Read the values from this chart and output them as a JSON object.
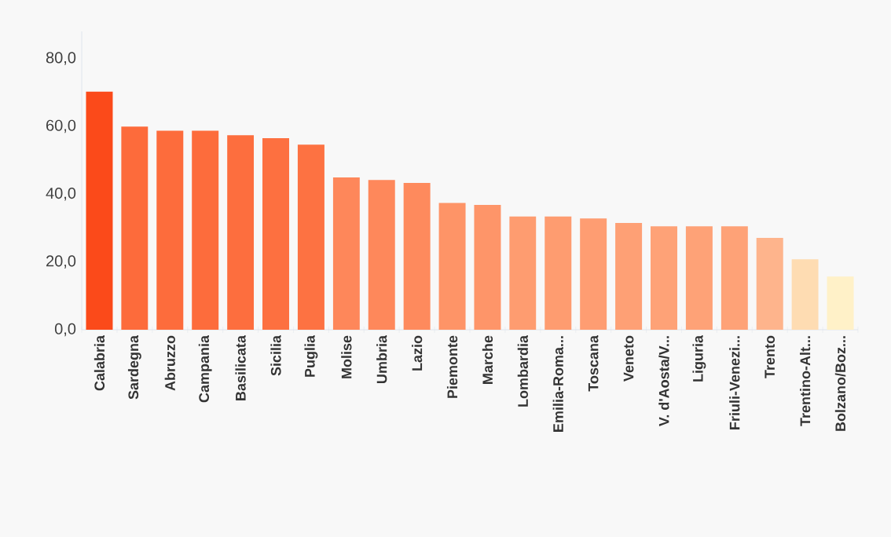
{
  "chart_data": {
    "type": "bar",
    "categories": [
      "Calabria",
      "Sardegna",
      "Abruzzo",
      "Campania",
      "Basilicata",
      "Sicilia",
      "Puglia",
      "Molise",
      "Umbria",
      "Lazio",
      "Piemonte",
      "Marche",
      "Lombardia",
      "Emilia-Roma...",
      "Toscana",
      "Veneto",
      "V. d'Aosta/V...",
      "Liguria",
      "Friuli-Venezi...",
      "Trento",
      "Trentino-Alt...",
      "Bolzano/Boz..."
    ],
    "values": [
      70.3,
      59.9,
      58.7,
      58.7,
      57.4,
      56.5,
      54.6,
      44.9,
      44.2,
      43.3,
      37.4,
      36.8,
      33.4,
      33.4,
      32.8,
      31.5,
      30.5,
      30.5,
      30.5,
      27.1,
      20.8,
      15.7
    ],
    "colors": [
      "#fb4a1a",
      "#fd6b3b",
      "#fd6c3c",
      "#fd6c3c",
      "#fd6e3e",
      "#fd7040",
      "#fd7242",
      "#fe875a",
      "#fe885b",
      "#fe8a5d",
      "#fe9467",
      "#fe9569",
      "#fe9c70",
      "#fe9c70",
      "#fe9d72",
      "#fea075",
      "#fea277",
      "#fea277",
      "#fea277",
      "#feb48c",
      "#fedcb2",
      "#fff1c8"
    ],
    "ylim": [
      0,
      88
    ],
    "yticks": [
      {
        "value": 0,
        "label": "0,0"
      },
      {
        "value": 20,
        "label": "20,0"
      },
      {
        "value": 40,
        "label": "40,0"
      },
      {
        "value": 60,
        "label": "60,0"
      },
      {
        "value": 80,
        "label": "80,0"
      }
    ],
    "grid": false
  }
}
